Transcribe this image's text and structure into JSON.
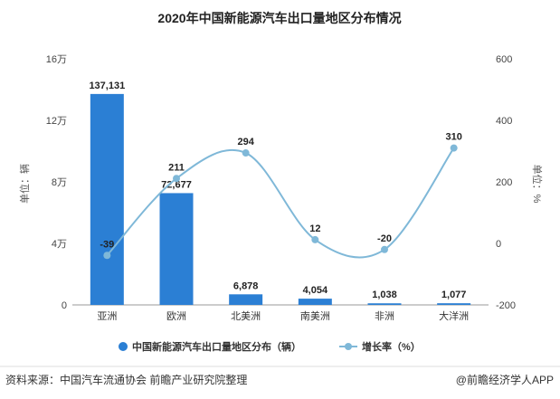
{
  "chart_data": {
    "type": "bar",
    "title": "2020年中国新能源汽车出口量地区分布情况",
    "categories": [
      "亚洲",
      "欧洲",
      "北美洲",
      "南美洲",
      "非洲",
      "大洋洲"
    ],
    "series": [
      {
        "name": "中国新能源汽车出口量地区分布（辆）",
        "type": "bar",
        "axis": "left",
        "values": [
          137131,
          72677,
          6878,
          4054,
          1038,
          1077
        ],
        "labels": [
          "137,131",
          "72,677",
          "6,878",
          "4,054",
          "1,038",
          "1,077"
        ],
        "color": "#2b7fd4"
      },
      {
        "name": "增长率（%）",
        "type": "line",
        "axis": "right",
        "values": [
          -39,
          211,
          294,
          12,
          -20,
          310
        ],
        "labels": [
          "-39",
          "211",
          "294",
          "12",
          "-20",
          "310"
        ],
        "color": "#7fb8d8"
      }
    ],
    "y_left": {
      "label": "单位：辆",
      "ylim": [
        0,
        160000
      ],
      "ticks": [
        0,
        40000,
        80000,
        120000,
        160000
      ],
      "tick_labels": [
        "0",
        "4万",
        "8万",
        "12万",
        "16万"
      ]
    },
    "y_right": {
      "label": "单位：%",
      "ylim": [
        -200,
        600
      ],
      "ticks": [
        -200,
        0,
        200,
        400,
        600
      ],
      "tick_labels": [
        "-200",
        "0",
        "200",
        "400",
        "600"
      ]
    },
    "legend_position": "bottom"
  },
  "footer": {
    "source": "资料来源：中国汽车流通协会 前瞻产业研究院整理",
    "brand": "@前瞻经济学人APP"
  }
}
